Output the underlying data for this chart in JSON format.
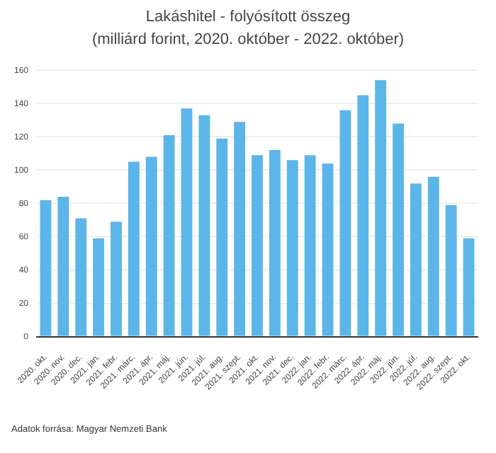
{
  "chart_data": {
    "type": "bar",
    "title": "Lakáshitel - folyósított összeg",
    "subtitle": "(milliárd forint, 2020. október - 2022. október)",
    "categories": [
      "2020. okt.",
      "2020. nov.",
      "2020. dec.",
      "2021. jan.",
      "2021. febr.",
      "2021. márc.",
      "2021. ápr.",
      "2021. máj.",
      "2021. jún.",
      "2021. júl.",
      "2021. aug.",
      "2021. szept.",
      "2021. okt.",
      "2021. nov.",
      "2021. dec.",
      "2022. jan.",
      "2022. febr.",
      "2022. márc.",
      "2022. ápr.",
      "2022. máj.",
      "2022. jún.",
      "2022. júl.",
      "2022. aug.",
      "2022. szept.",
      "2022. okt."
    ],
    "values": [
      82,
      84,
      71,
      59,
      69,
      105,
      108,
      121,
      137,
      133,
      119,
      129,
      109,
      112,
      106,
      109,
      104,
      136,
      145,
      154,
      128,
      92,
      96,
      79,
      59
    ],
    "color": "#5cb5e9",
    "ylim": [
      0,
      160
    ],
    "yticks": [
      0,
      20,
      40,
      60,
      80,
      100,
      120,
      140,
      160
    ],
    "grid": "y",
    "annotations": [
      "Adatok forrása: Magyar Nemzeti Bank"
    ]
  }
}
